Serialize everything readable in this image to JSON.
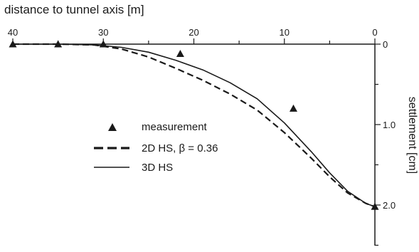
{
  "chart_data": {
    "type": "line",
    "xlabel": "distance to tunnel axis [m]",
    "ylabel": "settlement [cm]",
    "x_ticks": [
      40,
      30,
      20,
      10,
      0
    ],
    "y_ticks": [
      0,
      1.0,
      2.0
    ],
    "y_tick_labels": [
      "0",
      "1.0",
      "2.0"
    ],
    "xlim": [
      40,
      0
    ],
    "ylim": [
      0,
      2.55
    ],
    "x_reversed": true,
    "y_inverted": true,
    "legend_position": "center-left",
    "series": [
      {
        "name": "measurement",
        "style": "triangle-markers",
        "points": [
          [
            40,
            0.0
          ],
          [
            35,
            0.0
          ],
          [
            30,
            0.0
          ],
          [
            21.5,
            0.12
          ],
          [
            9,
            0.8
          ],
          [
            0,
            2.02
          ]
        ]
      },
      {
        "name": "2D HS, β = 0.36",
        "style": "dashed",
        "points": [
          [
            40,
            0.0
          ],
          [
            35,
            0.0
          ],
          [
            31,
            0.01
          ],
          [
            28,
            0.06
          ],
          [
            25,
            0.16
          ],
          [
            22,
            0.3
          ],
          [
            19,
            0.45
          ],
          [
            16,
            0.62
          ],
          [
            13,
            0.82
          ],
          [
            10,
            1.1
          ],
          [
            7,
            1.42
          ],
          [
            5,
            1.65
          ],
          [
            3,
            1.85
          ],
          [
            1,
            1.98
          ],
          [
            0,
            2.02
          ]
        ]
      },
      {
        "name": "3D HS",
        "style": "solid",
        "points": [
          [
            40,
            0.0
          ],
          [
            35,
            0.0
          ],
          [
            31,
            0.01
          ],
          [
            28,
            0.04
          ],
          [
            25,
            0.1
          ],
          [
            22,
            0.2
          ],
          [
            19,
            0.32
          ],
          [
            16,
            0.48
          ],
          [
            13,
            0.68
          ],
          [
            10,
            0.98
          ],
          [
            7,
            1.34
          ],
          [
            5,
            1.6
          ],
          [
            3,
            1.83
          ],
          [
            1,
            1.98
          ],
          [
            0,
            2.02
          ]
        ]
      }
    ]
  }
}
